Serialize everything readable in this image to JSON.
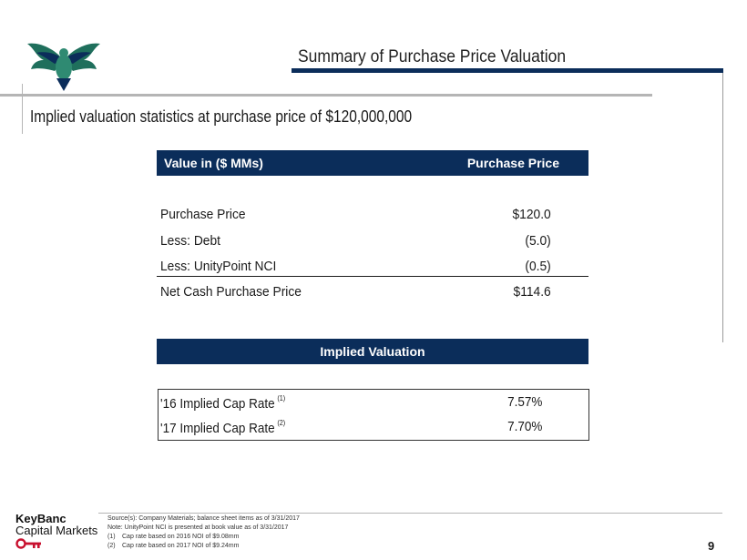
{
  "header": {
    "title": "Summary of Purchase Price Valuation"
  },
  "subtitle": "Implied valuation statistics at purchase price of $120,000,000",
  "table": {
    "col_label": "Value in ($ MMs)",
    "col_value": "Purchase Price",
    "rows": [
      {
        "label": "Purchase Price",
        "value": "$120.0"
      },
      {
        "label": "Less: Debt",
        "value": "(5.0)"
      },
      {
        "label": "Less: UnityPoint NCI",
        "value": "(0.5)"
      },
      {
        "label": "Net Cash Purchase Price",
        "value": "$114.6"
      }
    ]
  },
  "implied": {
    "title": "Implied Valuation",
    "rows": [
      {
        "label": "'16 Implied Cap Rate",
        "note": "(1)",
        "value": "7.57%"
      },
      {
        "label": "'17 Implied Cap Rate",
        "note": "(2)",
        "value": "7.70%"
      }
    ]
  },
  "footer": {
    "brand_line1": "KeyBanc",
    "brand_line2": "Capital Markets",
    "source": "Source(s): Company Materials; balance sheet items as of 3/31/2017",
    "note": "Note: UnityPoint NCI is presented at book value as of 3/31/2017",
    "notes": [
      {
        "num": "(1)",
        "text": "Cap rate based on 2016 NOI of $9.08mm"
      },
      {
        "num": "(2)",
        "text": "Cap rate based on 2017 NOI of $9.24mm"
      }
    ],
    "page": "9"
  },
  "colors": {
    "navy": "#0b2d5a",
    "teal": "#1f6f5c",
    "key_red": "#c8102e"
  }
}
